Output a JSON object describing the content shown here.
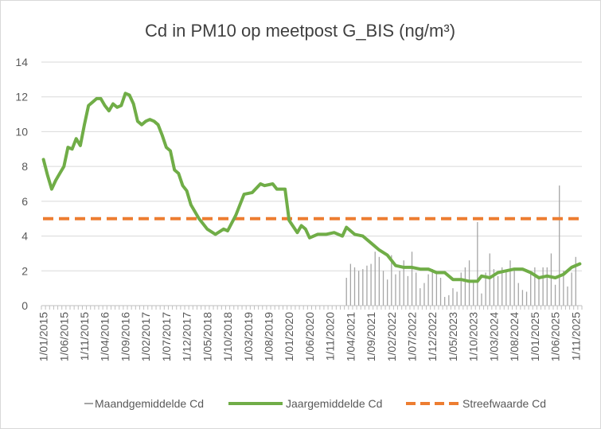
{
  "chart_data": {
    "type": "line",
    "title": "Cd in PM10 op meetpost G_BIS (ng/m³)",
    "xlabel": "",
    "ylabel": "",
    "ylim": [
      0,
      14
    ],
    "yticks": [
      0,
      2,
      4,
      6,
      8,
      10,
      12,
      14
    ],
    "xticks": [
      "1/01/2015",
      "1/06/2015",
      "1/11/2015",
      "1/04/2016",
      "1/09/2016",
      "1/02/2017",
      "1/07/2017",
      "1/12/2017",
      "1/05/2018",
      "1/10/2018",
      "1/03/2019",
      "1/08/2019",
      "1/01/2020",
      "1/06/2020",
      "1/11/2020",
      "1/04/2021",
      "1/09/2021",
      "1/02/2022",
      "1/07/2022",
      "1/12/2022",
      "1/05/2023",
      "1/10/2023",
      "1/03/2024",
      "1/08/2024",
      "1/01/2025",
      "1/06/2025",
      "1/11/2025"
    ],
    "grid": true,
    "legend_position": "bottom",
    "series": [
      {
        "name": "Maandgemiddelde Cd",
        "kind": "bar",
        "color": "#a5a5a5",
        "x_start": "2021-03",
        "values": [
          1.6,
          2.4,
          2.2,
          2.0,
          2.1,
          2.3,
          2.4,
          3.1,
          2.8,
          2.0,
          1.5,
          2.9,
          1.8,
          2.0,
          2.6,
          1.7,
          3.1,
          1.9,
          1.0,
          1.3,
          1.8,
          2.1,
          1.9,
          1.6,
          0.5,
          0.6,
          1.0,
          0.8,
          1.9,
          2.2,
          2.6,
          1.4,
          4.8,
          0.7,
          1.9,
          3.0,
          2.1,
          1.7,
          2.2,
          2.0,
          2.6,
          2.1,
          1.3,
          0.9,
          0.8,
          1.9,
          2.2,
          1.6,
          2.2,
          2.2,
          3.0,
          1.2,
          6.9,
          2.0,
          1.1,
          1.9,
          2.8
        ]
      },
      {
        "name": "Jaargemiddelde Cd",
        "kind": "line",
        "color": "#70ad47",
        "x": [
          "2015-01",
          "2015-02",
          "2015-03",
          "2015-04",
          "2015-05",
          "2015-06",
          "2015-07",
          "2015-08",
          "2015-09",
          "2015-10",
          "2015-11",
          "2015-12",
          "2016-01",
          "2016-02",
          "2016-03",
          "2016-04",
          "2016-05",
          "2016-06",
          "2016-07",
          "2016-08",
          "2016-09",
          "2016-10",
          "2016-11",
          "2016-12",
          "2017-01",
          "2017-02",
          "2017-03",
          "2017-04",
          "2017-05",
          "2017-06",
          "2017-07",
          "2017-08",
          "2017-09",
          "2017-10",
          "2017-11",
          "2017-12",
          "2018-01",
          "2018-03",
          "2018-05",
          "2018-07",
          "2018-09",
          "2018-10",
          "2018-12",
          "2019-02",
          "2019-04",
          "2019-06",
          "2019-07",
          "2019-09",
          "2019-10",
          "2019-12",
          "2020-01",
          "2020-03",
          "2020-04",
          "2020-05",
          "2020-06",
          "2020-08",
          "2020-10",
          "2020-12",
          "2021-02",
          "2021-03",
          "2021-05",
          "2021-07",
          "2021-09",
          "2021-11",
          "2022-01",
          "2022-03",
          "2022-05",
          "2022-07",
          "2022-09",
          "2022-11",
          "2023-01",
          "2023-03",
          "2023-05",
          "2023-07",
          "2023-09",
          "2023-11",
          "2023-12",
          "2024-02",
          "2024-04",
          "2024-06",
          "2024-08",
          "2024-10",
          "2024-12",
          "2025-02",
          "2025-04",
          "2025-06",
          "2025-08",
          "2025-10",
          "2025-12"
        ],
        "values": [
          8.4,
          7.5,
          6.7,
          7.2,
          7.6,
          8.0,
          9.1,
          9.0,
          9.6,
          9.2,
          10.4,
          11.5,
          11.7,
          11.9,
          11.9,
          11.5,
          11.2,
          11.6,
          11.4,
          11.5,
          12.2,
          12.1,
          11.6,
          10.6,
          10.4,
          10.6,
          10.7,
          10.6,
          10.4,
          9.8,
          9.1,
          8.9,
          7.8,
          7.6,
          6.9,
          6.6,
          5.8,
          5.0,
          4.4,
          4.1,
          4.4,
          4.3,
          5.2,
          6.4,
          6.5,
          7.0,
          6.9,
          7.0,
          6.7,
          6.7,
          4.9,
          4.2,
          4.6,
          4.4,
          3.9,
          4.1,
          4.1,
          4.2,
          4.0,
          4.5,
          4.1,
          4.0,
          3.6,
          3.2,
          2.9,
          2.3,
          2.2,
          2.2,
          2.1,
          2.1,
          1.9,
          1.9,
          1.5,
          1.5,
          1.4,
          1.4,
          1.7,
          1.6,
          1.9,
          2.0,
          2.1,
          2.1,
          1.9,
          1.6,
          1.7,
          1.6,
          1.8,
          2.2,
          2.4
        ]
      },
      {
        "name": "Streefwaarde Cd",
        "kind": "dashed-line",
        "color": "#ed7d31",
        "value": 5
      }
    ]
  }
}
